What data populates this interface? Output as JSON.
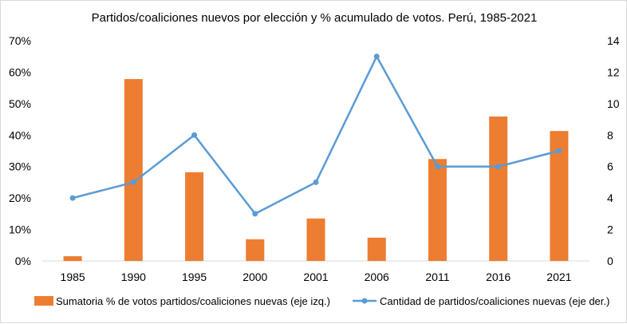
{
  "chart_data": {
    "type": "bar+line",
    "title": "Partidos/coaliciones nuevos por elección y % acumulado de votos. Perú, 1985-2021",
    "categories": [
      "1985",
      "1990",
      "1995",
      "2000",
      "2001",
      "2006",
      "2011",
      "2016",
      "2021"
    ],
    "series": [
      {
        "name": "Sumatoria % de votos partidos/coaliciones nuevas (eje izq.)",
        "type": "bar",
        "axis": "left",
        "color": "#ED7D31",
        "values": [
          0.015,
          0.578,
          0.282,
          0.069,
          0.135,
          0.074,
          0.324,
          0.459,
          0.413
        ]
      },
      {
        "name": "Cantidad de partidos/coaliciones nuevas (eje der.)",
        "type": "line",
        "axis": "right",
        "color": "#5B9BD5",
        "values": [
          4,
          5,
          8,
          3,
          5,
          13,
          6,
          6,
          7
        ]
      }
    ],
    "left_axis": {
      "range": [
        0,
        0.7
      ],
      "ticks": [
        "0%",
        "10%",
        "20%",
        "30%",
        "40%",
        "50%",
        "60%",
        "70%"
      ]
    },
    "right_axis": {
      "range": [
        0,
        14
      ],
      "ticks": [
        "0",
        "2",
        "4",
        "6",
        "8",
        "10",
        "12",
        "14"
      ]
    },
    "grid": false,
    "legend_position": "bottom"
  }
}
